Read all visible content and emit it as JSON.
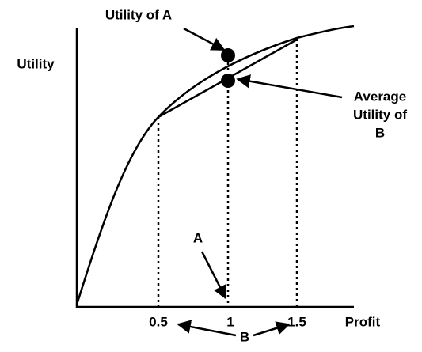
{
  "axes": {
    "y_label": "Utility",
    "x_label": "Profit",
    "x_ticks": [
      "0.5",
      "1",
      "1.5"
    ]
  },
  "annotations": {
    "utility_a": "Utility of A",
    "average_b": [
      "Average",
      "Utility of",
      "B"
    ],
    "a": "A",
    "b": "B"
  }
}
